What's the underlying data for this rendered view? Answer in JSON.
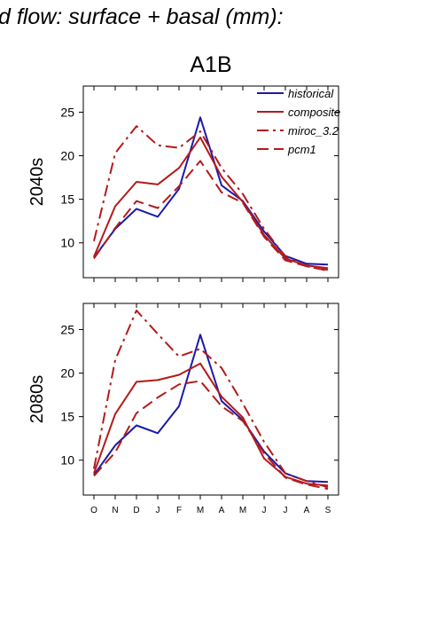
{
  "figure_title": "d flow: surface + basal (mm):",
  "scenario_title": "A1B",
  "colors": {
    "historical": "#1a1aa8",
    "model": "#b31b1b"
  },
  "chart_data": [
    {
      "type": "line",
      "panel_label": "2040s",
      "categories": [
        "O",
        "N",
        "D",
        "J",
        "F",
        "M",
        "A",
        "M",
        "J",
        "J",
        "A",
        "S"
      ],
      "ylim": [
        6,
        28
      ],
      "yticks": [
        10,
        15,
        20,
        25
      ],
      "series": [
        {
          "name": "historical",
          "style": "solid",
          "color": "#1a1aa8",
          "values": [
            8.3,
            11.6,
            13.9,
            13.0,
            16.2,
            24.4,
            16.6,
            14.8,
            11.3,
            8.5,
            7.6,
            7.5
          ]
        },
        {
          "name": "composite",
          "style": "solid",
          "color": "#b31b1b",
          "values": [
            8.4,
            14.2,
            17.0,
            16.7,
            18.6,
            22.1,
            17.6,
            14.7,
            10.9,
            8.2,
            7.4,
            7.1
          ]
        },
        {
          "name": "miroc_3.2",
          "style": "dashdot",
          "color": "#b31b1b",
          "values": [
            10.2,
            20.3,
            23.4,
            21.2,
            20.9,
            22.8,
            18.6,
            15.6,
            11.6,
            8.4,
            7.3,
            6.9
          ]
        },
        {
          "name": "pcm1",
          "style": "dashed",
          "color": "#b31b1b",
          "values": [
            8.2,
            11.7,
            14.8,
            14.0,
            16.5,
            19.4,
            15.8,
            14.6,
            10.7,
            8.0,
            7.3,
            6.8
          ]
        }
      ],
      "legend": [
        "historical",
        "composite",
        "miroc_3.2",
        "pcm1"
      ]
    },
    {
      "type": "line",
      "panel_label": "2080s",
      "categories": [
        "O",
        "N",
        "D",
        "J",
        "F",
        "M",
        "A",
        "M",
        "J",
        "J",
        "A",
        "S"
      ],
      "ylim": [
        6,
        28
      ],
      "yticks": [
        10,
        15,
        20,
        25
      ],
      "series": [
        {
          "name": "historical",
          "style": "solid",
          "color": "#1a1aa8",
          "values": [
            8.3,
            11.7,
            14.0,
            13.1,
            16.2,
            24.4,
            16.8,
            14.6,
            11.0,
            8.5,
            7.6,
            7.5
          ]
        },
        {
          "name": "composite",
          "style": "solid",
          "color": "#b31b1b",
          "values": [
            8.5,
            15.3,
            19.0,
            19.2,
            19.8,
            21.1,
            17.3,
            14.9,
            10.2,
            8.1,
            7.3,
            7.1
          ]
        },
        {
          "name": "miroc_3.2",
          "style": "dashdot",
          "color": "#b31b1b",
          "values": [
            9.0,
            21.5,
            27.2,
            24.5,
            21.9,
            22.8,
            20.6,
            16.5,
            12.1,
            8.5,
            7.6,
            6.9
          ]
        },
        {
          "name": "pcm1",
          "style": "dashed",
          "color": "#b31b1b",
          "values": [
            8.2,
            10.9,
            15.4,
            17.2,
            18.7,
            19.1,
            16.2,
            14.5,
            10.8,
            8.0,
            7.2,
            6.7
          ]
        }
      ]
    }
  ]
}
